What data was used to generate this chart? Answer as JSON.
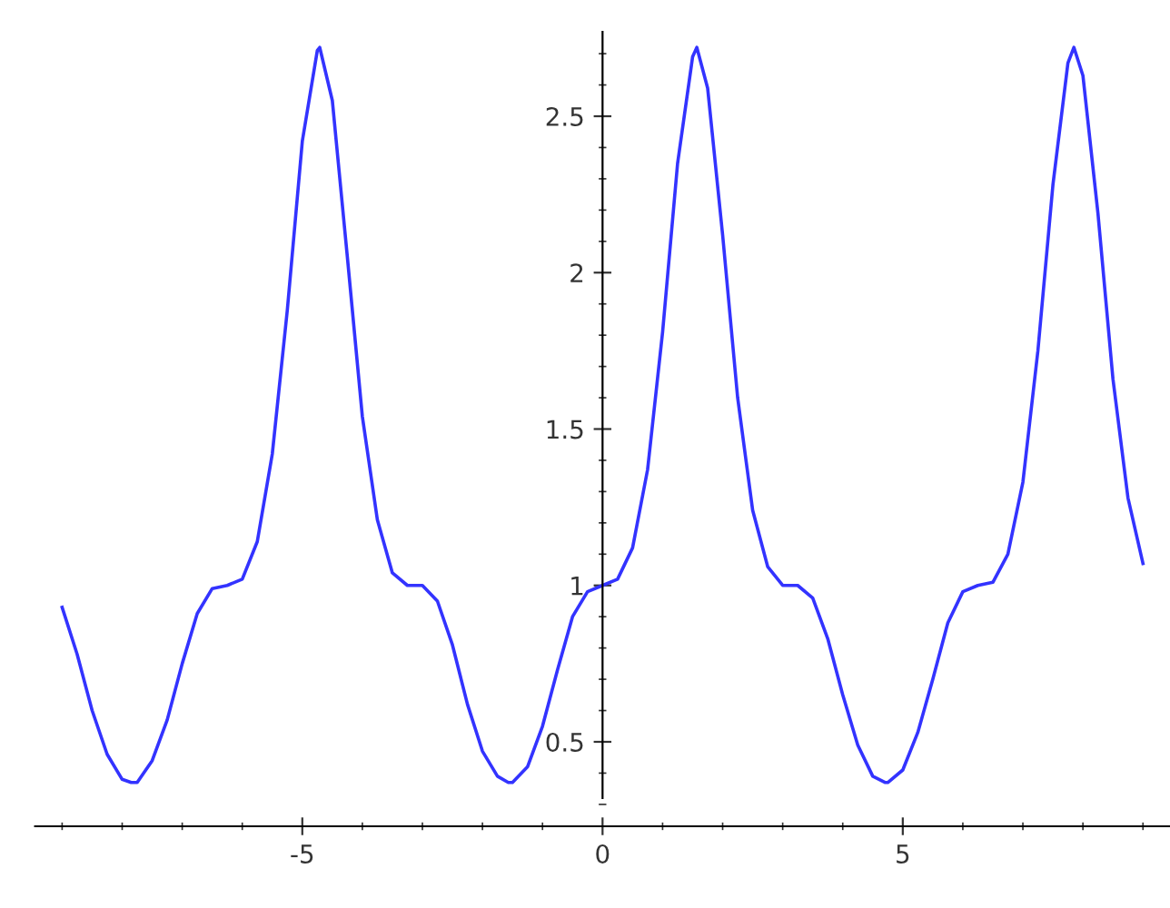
{
  "chart_data": {
    "type": "line",
    "xlim": [
      -9.45,
      9.45
    ],
    "ylim": [
      0.23,
      2.77
    ],
    "xticks": [
      -5,
      0,
      5
    ],
    "yticks": [
      0.5,
      1,
      1.5,
      2,
      2.5
    ],
    "grid": false,
    "legend": false,
    "marker": "none",
    "line_style": "solid",
    "series": [
      {
        "color": "#3333ff",
        "x": [
          -9,
          -8.75,
          -8.5,
          -8.25,
          -8,
          -7.85,
          -7.75,
          -7.5,
          -7.25,
          -7,
          -6.75,
          -6.5,
          -6.25,
          -6,
          -5.75,
          -5.5,
          -5.25,
          -5,
          -4.75,
          -4.71,
          -4.5,
          -4.25,
          -4,
          -3.75,
          -3.5,
          -3.25,
          -3,
          -2.75,
          -2.5,
          -2.25,
          -2,
          -1.75,
          -1.57,
          -1.5,
          -1.25,
          -1,
          -0.75,
          -0.5,
          -0.25,
          0,
          0.25,
          0.5,
          0.75,
          1,
          1.25,
          1.5,
          1.57,
          1.75,
          2,
          2.25,
          2.5,
          2.75,
          3,
          3.25,
          3.5,
          3.75,
          4,
          4.25,
          4.5,
          4.71,
          4.75,
          5,
          5.25,
          5.5,
          5.75,
          6,
          6.25,
          6.5,
          6.75,
          7,
          7.25,
          7.5,
          7.75,
          7.85,
          8,
          8.25,
          8.5,
          8.75,
          9
        ],
        "values": [
          0.93,
          0.78,
          0.6,
          0.46,
          0.38,
          0.37,
          0.37,
          0.44,
          0.57,
          0.75,
          0.91,
          0.99,
          1.0,
          1.02,
          1.14,
          1.42,
          1.88,
          2.42,
          2.71,
          2.72,
          2.55,
          2.05,
          1.54,
          1.21,
          1.04,
          1.0,
          1.0,
          0.95,
          0.81,
          0.62,
          0.47,
          0.39,
          0.37,
          0.37,
          0.42,
          0.55,
          0.73,
          0.9,
          0.98,
          1.0,
          1.02,
          1.12,
          1.37,
          1.81,
          2.35,
          2.69,
          2.72,
          2.59,
          2.12,
          1.6,
          1.24,
          1.06,
          1.0,
          1.0,
          0.96,
          0.83,
          0.65,
          0.49,
          0.39,
          0.37,
          0.37,
          0.41,
          0.53,
          0.7,
          0.88,
          0.98,
          1.0,
          1.01,
          1.1,
          1.33,
          1.75,
          2.28,
          2.67,
          2.72,
          2.63,
          2.19,
          1.66,
          1.28,
          1.07
        ]
      }
    ]
  }
}
